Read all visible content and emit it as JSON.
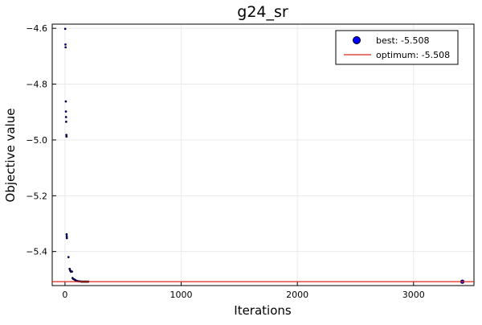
{
  "chart_data": {
    "type": "scatter",
    "title": "g24_sr",
    "xlabel": "Iterations",
    "ylabel": "Objective value",
    "xlim": [
      -110,
      3520
    ],
    "ylim": [
      -5.522,
      -4.585
    ],
    "x_ticks": [
      0,
      1000,
      2000,
      3000
    ],
    "x_tick_labels": [
      "0",
      "1000",
      "2000",
      "3000"
    ],
    "y_ticks": [
      -4.6,
      -4.8,
      -5.0,
      -5.2,
      -5.4
    ],
    "y_tick_labels": [
      "−4.6",
      "−4.8",
      "−5.0",
      "−5.2",
      "−5.4"
    ],
    "grid": true,
    "legend_position": "top-right",
    "series": [
      {
        "name": "best: -5.508",
        "kind": "scatter",
        "color": "#0000ff",
        "points": [
          [
            2,
            -4.602
          ],
          [
            4,
            -4.658
          ],
          [
            5,
            -4.668
          ],
          [
            7,
            -4.862
          ],
          [
            8,
            -4.898
          ],
          [
            9,
            -4.918
          ],
          [
            10,
            -4.935
          ],
          [
            12,
            -4.982
          ],
          [
            13,
            -4.988
          ],
          [
            14,
            -5.338
          ],
          [
            15,
            -5.345
          ],
          [
            16,
            -5.352
          ],
          [
            30,
            -5.42
          ],
          [
            40,
            -5.462
          ],
          [
            45,
            -5.468
          ],
          [
            50,
            -5.472
          ],
          [
            60,
            -5.472
          ],
          [
            65,
            -5.495
          ],
          [
            70,
            -5.498
          ],
          [
            80,
            -5.5
          ],
          [
            90,
            -5.503
          ],
          [
            100,
            -5.505
          ],
          [
            110,
            -5.506
          ],
          [
            120,
            -5.507
          ],
          [
            130,
            -5.507
          ],
          [
            140,
            -5.508
          ],
          [
            150,
            -5.508
          ],
          [
            160,
            -5.508
          ],
          [
            170,
            -5.508
          ],
          [
            180,
            -5.508
          ],
          [
            190,
            -5.508
          ],
          [
            200,
            -5.508
          ],
          [
            3420,
            -5.508
          ]
        ]
      },
      {
        "name": "optimum: -5.508",
        "kind": "hline",
        "color": "#e0261b",
        "y": -5.508
      }
    ]
  }
}
